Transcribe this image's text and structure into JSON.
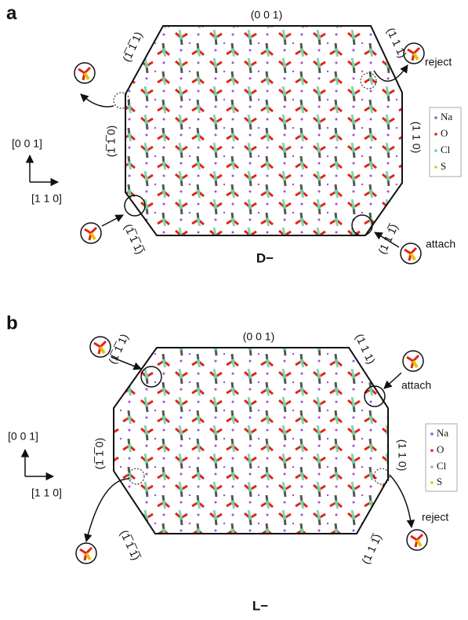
{
  "panels": [
    {
      "label": "a",
      "faces": {
        "top": "(0 0 1)",
        "top_left": "(1̅ 1̅ 1)",
        "top_right": "(1 1 1)",
        "left": "(1̅ 1̅ 0)",
        "right": "(1 1 0)",
        "bottom_left": "(1̅ 1̅ 1̅)",
        "bottom_right": "(1 1 1̅)"
      },
      "annotations": {
        "upper": "reject",
        "lower": "attach"
      },
      "axes": {
        "vertical": "[0 0 1]",
        "horizontal": "[1 1 0]"
      },
      "legend": [
        "Na",
        "O",
        "Cl",
        "S"
      ],
      "caption": "D−"
    },
    {
      "label": "b",
      "faces": {
        "top": "(0 0 1)",
        "top_left": "(1̅ 1̅ 1)",
        "top_right": "(1 1 1)",
        "left": "(1̅ 1̅ 0)",
        "right": "(1 1 0)",
        "bottom_left": "(1̅ 1̅ 1̅)",
        "bottom_right": "(1 1 1̅)"
      },
      "annotations": {
        "upper": "attach",
        "lower": "reject"
      },
      "axes": {
        "vertical": "[0 0 1]",
        "horizontal": "[1 1 0]"
      },
      "legend": [
        "Na",
        "O",
        "Cl",
        "S"
      ],
      "caption": "L−"
    }
  ]
}
